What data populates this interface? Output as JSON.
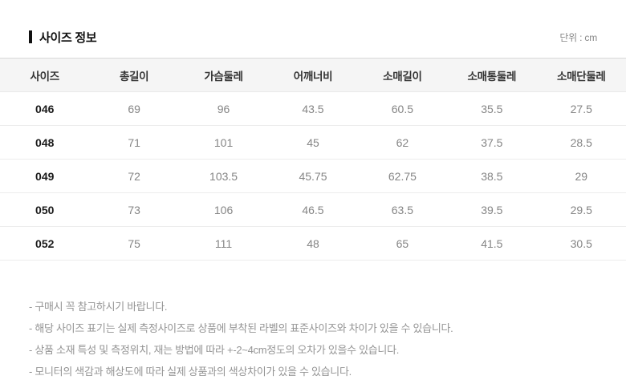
{
  "page": {
    "title": "사이즈 정보",
    "unit_label": "단위 : cm"
  },
  "table": {
    "headers": [
      "사이즈",
      "총길이",
      "가슴둘레",
      "어깨너비",
      "소매길이",
      "소매통둘레",
      "소매단둘레"
    ],
    "rows": [
      {
        "size": "046",
        "values": [
          "69",
          "96",
          "43.5",
          "60.5",
          "35.5",
          "27.5"
        ]
      },
      {
        "size": "048",
        "values": [
          "71",
          "101",
          "45",
          "62",
          "37.5",
          "28.5"
        ]
      },
      {
        "size": "049",
        "values": [
          "72",
          "103.5",
          "45.75",
          "62.75",
          "38.5",
          "29"
        ]
      },
      {
        "size": "050",
        "values": [
          "73",
          "106",
          "46.5",
          "63.5",
          "39.5",
          "29.5"
        ]
      },
      {
        "size": "052",
        "values": [
          "75",
          "111",
          "48",
          "65",
          "41.5",
          "30.5"
        ]
      }
    ]
  },
  "notes": [
    "- 구매시 꼭 참고하시기 바랍니다.",
    "- 해당 사이즈 표기는 실제 측정사이즈로 상품에 부착된 라벨의 표준사이즈와 차이가 있을 수 있습니다.",
    "- 상품 소재 특성 및 측정위치, 재는 방법에 따라 +-2~4cm정도의 오차가 있을수 있습니다.",
    "- 모니터의 색감과 해상도에 따라 실제 상품과의 색상차이가 있을 수 있습니다."
  ]
}
